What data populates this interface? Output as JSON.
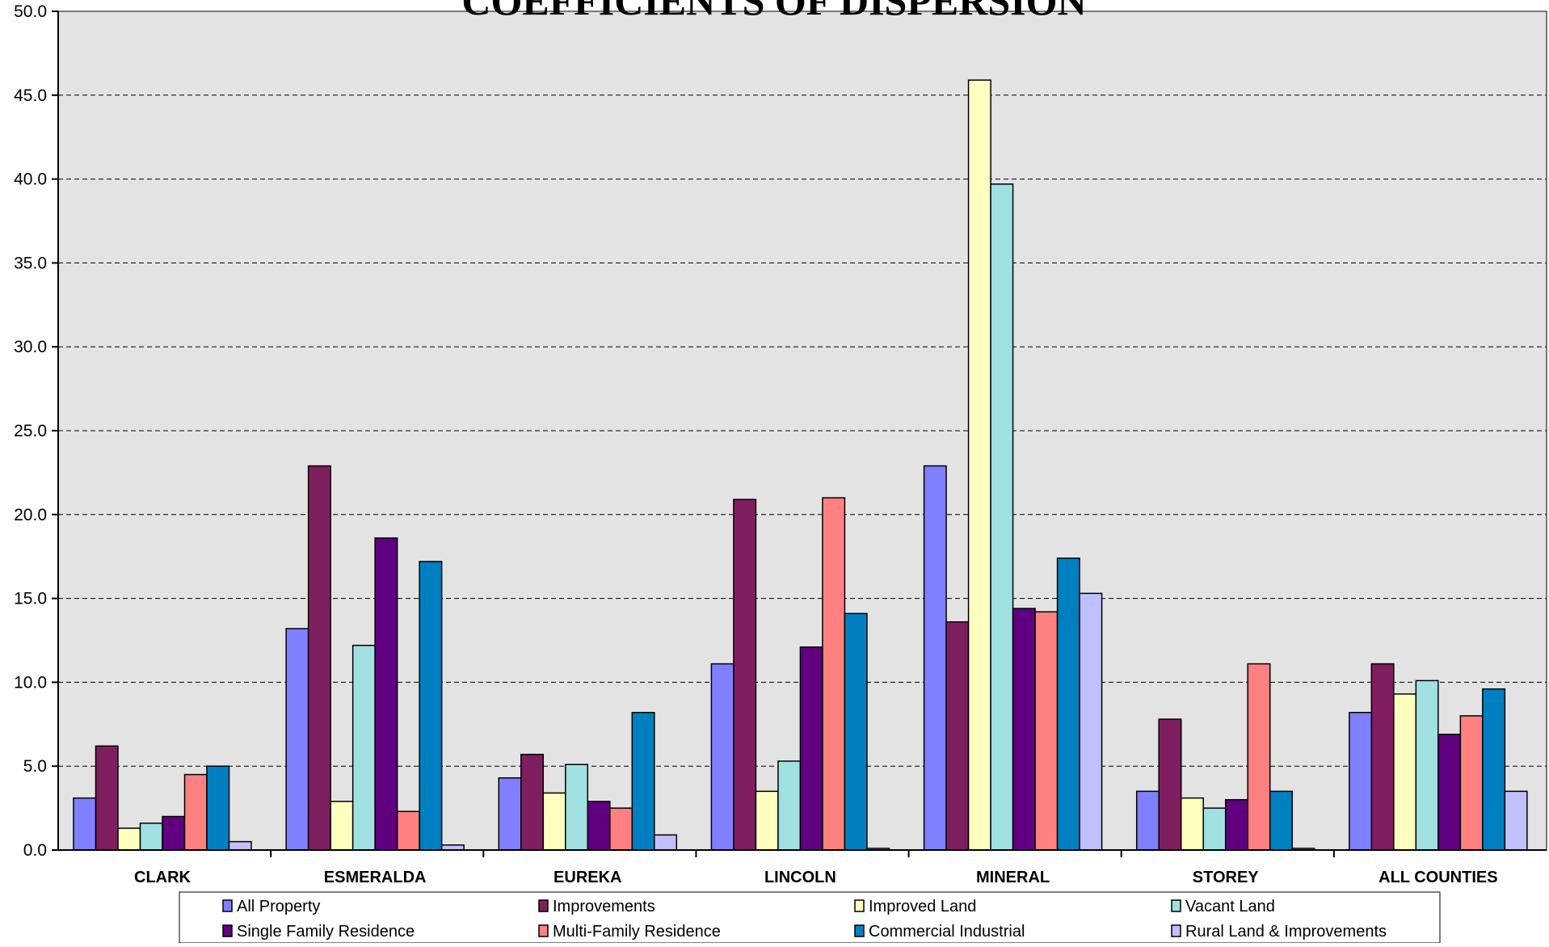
{
  "chart_data": {
    "type": "bar",
    "title": "COEFFICIENTS OF DISPERSION",
    "xlabel": "",
    "ylabel": "",
    "ylim": [
      0,
      50
    ],
    "yticks": [
      "0.0",
      "5.0",
      "10.0",
      "15.0",
      "20.0",
      "25.0",
      "30.0",
      "35.0",
      "40.0",
      "45.0",
      "50.0"
    ],
    "grid": true,
    "legend_position": "bottom",
    "plot_background": "#e3e3e3",
    "categories": [
      "CLARK",
      "ESMERALDA",
      "EUREKA",
      "LINCOLN",
      "MINERAL",
      "STOREY",
      "ALL COUNTIES"
    ],
    "series": [
      {
        "name": "All Property",
        "color": "#8080ff",
        "values": [
          3.1,
          13.2,
          4.3,
          11.1,
          22.9,
          3.5,
          8.2
        ]
      },
      {
        "name": "Improvements",
        "color": "#7f1f5f",
        "values": [
          6.2,
          22.9,
          5.7,
          20.9,
          13.6,
          7.8,
          11.1
        ]
      },
      {
        "name": "Improved Land",
        "color": "#ffffc0",
        "values": [
          1.3,
          2.9,
          3.4,
          3.5,
          45.9,
          3.1,
          9.3
        ]
      },
      {
        "name": "Vacant Land",
        "color": "#a0e0e0",
        "values": [
          1.6,
          12.2,
          5.1,
          5.3,
          39.7,
          2.5,
          10.1
        ]
      },
      {
        "name": "Single Family Residence",
        "color": "#600080",
        "values": [
          2.0,
          18.6,
          2.9,
          12.1,
          14.4,
          3.0,
          6.9
        ]
      },
      {
        "name": "Multi-Family Residence",
        "color": "#ff8080",
        "values": [
          4.5,
          2.3,
          2.5,
          21.0,
          14.2,
          11.1,
          8.0
        ]
      },
      {
        "name": "Commercial Industrial",
        "color": "#0080c0",
        "values": [
          5.0,
          17.2,
          8.2,
          14.1,
          17.4,
          3.5,
          9.6
        ]
      },
      {
        "name": "Rural Land & Improvements",
        "color": "#c0c0ff",
        "values": [
          0.5,
          0.3,
          0.9,
          0.1,
          15.3,
          0.1,
          3.5
        ]
      }
    ]
  }
}
